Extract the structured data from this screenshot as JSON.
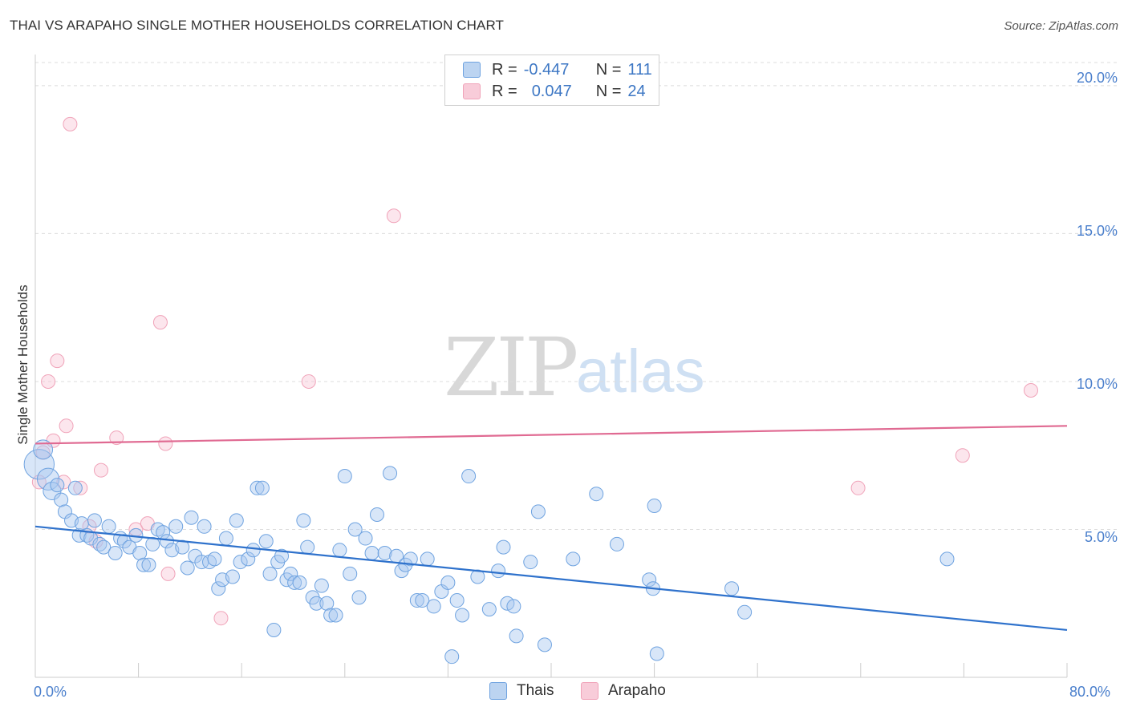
{
  "header": {
    "title": "THAI VS ARAPAHO SINGLE MOTHER HOUSEHOLDS CORRELATION CHART",
    "source": "Source: ZipAtlas.com"
  },
  "watermark": {
    "zip": "ZIP",
    "atlas": "atlas"
  },
  "legend_top": {
    "rows": [
      {
        "r_label": "R =",
        "r_value": "-0.447",
        "n_label": "N =",
        "n_value": "111"
      },
      {
        "r_label": "R =",
        "r_value": "0.047",
        "n_label": "N =",
        "n_value": "24"
      }
    ]
  },
  "chart_data": {
    "type": "scatter",
    "title": "THAI VS ARAPAHO SINGLE MOTHER HOUSEHOLDS CORRELATION CHART",
    "xlabel": "",
    "ylabel": "Single Mother Households",
    "xlim": [
      0,
      80
    ],
    "ylim": [
      0,
      21
    ],
    "x_tick_labels": [
      "0.0%",
      "80.0%"
    ],
    "y_ticks": [
      5,
      10,
      15,
      20
    ],
    "y_tick_labels": [
      "5.0%",
      "10.0%",
      "15.0%",
      "20.0%"
    ],
    "grid": "horizontal dashed",
    "legend_position": "top-center",
    "colors": {
      "thais": "#6fa3e0",
      "arapaho": "#f0a3b9",
      "thais_line": "#2f72cc",
      "arapaho_line": "#e06a92"
    },
    "series": [
      {
        "name": "Thais",
        "r": -0.447,
        "n": 111,
        "trend": {
          "x": [
            0,
            80
          ],
          "y": [
            5.1,
            1.6
          ]
        },
        "points": [
          [
            0.3,
            7.2,
            2.2
          ],
          [
            0.6,
            7.7,
            1.4
          ],
          [
            1.0,
            6.7,
            1.6
          ],
          [
            1.3,
            6.3,
            1.3
          ],
          [
            1.7,
            6.5,
            1.0
          ],
          [
            2.0,
            6.0,
            1.0
          ],
          [
            2.3,
            5.6,
            1.0
          ],
          [
            2.8,
            5.3,
            1.0
          ],
          [
            3.1,
            6.4,
            1.0
          ],
          [
            3.4,
            4.8,
            1.0
          ],
          [
            3.6,
            5.2,
            1.0
          ],
          [
            4.0,
            4.8,
            1.0
          ],
          [
            4.3,
            4.7,
            1.0
          ],
          [
            4.6,
            5.3,
            1.0
          ],
          [
            5.0,
            4.5,
            1.0
          ],
          [
            5.3,
            4.4,
            1.0
          ],
          [
            5.7,
            5.1,
            1.0
          ],
          [
            6.2,
            4.2,
            1.0
          ],
          [
            6.6,
            4.7,
            1.0
          ],
          [
            6.9,
            4.6,
            1.0
          ],
          [
            7.3,
            4.4,
            1.0
          ],
          [
            7.8,
            4.8,
            1.0
          ],
          [
            8.1,
            4.2,
            1.0
          ],
          [
            8.4,
            3.8,
            1.0
          ],
          [
            8.8,
            3.8,
            1.0
          ],
          [
            9.1,
            4.5,
            1.0
          ],
          [
            9.5,
            5.0,
            1.0
          ],
          [
            9.9,
            4.9,
            1.0
          ],
          [
            10.2,
            4.6,
            1.0
          ],
          [
            10.6,
            4.3,
            1.0
          ],
          [
            10.9,
            5.1,
            1.0
          ],
          [
            11.4,
            4.4,
            1.0
          ],
          [
            11.8,
            3.7,
            1.0
          ],
          [
            12.1,
            5.4,
            1.0
          ],
          [
            12.4,
            4.1,
            1.0
          ],
          [
            12.9,
            3.9,
            1.0
          ],
          [
            13.1,
            5.1,
            1.0
          ],
          [
            13.5,
            3.9,
            1.0
          ],
          [
            13.9,
            4.0,
            1.0
          ],
          [
            14.2,
            3.0,
            1.0
          ],
          [
            14.5,
            3.3,
            1.0
          ],
          [
            14.8,
            4.7,
            1.0
          ],
          [
            15.3,
            3.4,
            1.0
          ],
          [
            15.6,
            5.3,
            1.0
          ],
          [
            15.9,
            3.9,
            1.0
          ],
          [
            16.5,
            4.0,
            1.0
          ],
          [
            16.9,
            4.3,
            1.0
          ],
          [
            17.2,
            6.4,
            1.0
          ],
          [
            17.6,
            6.4,
            1.0
          ],
          [
            17.9,
            4.6,
            1.0
          ],
          [
            18.2,
            3.5,
            1.0
          ],
          [
            18.5,
            1.6,
            1.0
          ],
          [
            18.8,
            3.9,
            1.0
          ],
          [
            19.1,
            4.1,
            1.0
          ],
          [
            19.5,
            3.3,
            1.0
          ],
          [
            19.8,
            3.5,
            1.0
          ],
          [
            20.1,
            3.2,
            1.0
          ],
          [
            20.5,
            3.2,
            1.0
          ],
          [
            20.8,
            5.3,
            1.0
          ],
          [
            21.1,
            4.4,
            1.0
          ],
          [
            21.5,
            2.7,
            1.0
          ],
          [
            21.8,
            2.5,
            1.0
          ],
          [
            22.2,
            3.1,
            1.0
          ],
          [
            22.6,
            2.5,
            1.0
          ],
          [
            22.9,
            2.1,
            1.0
          ],
          [
            23.3,
            2.1,
            1.0
          ],
          [
            23.6,
            4.3,
            1.0
          ],
          [
            24.0,
            6.8,
            1.0
          ],
          [
            24.4,
            3.5,
            1.0
          ],
          [
            24.8,
            5.0,
            1.0
          ],
          [
            25.1,
            2.7,
            1.0
          ],
          [
            25.6,
            4.7,
            1.0
          ],
          [
            26.1,
            4.2,
            1.0
          ],
          [
            26.5,
            5.5,
            1.0
          ],
          [
            27.1,
            4.2,
            1.0
          ],
          [
            27.5,
            6.9,
            1.0
          ],
          [
            28.0,
            4.1,
            1.0
          ],
          [
            28.4,
            3.6,
            1.0
          ],
          [
            28.7,
            3.8,
            1.0
          ],
          [
            29.1,
            4.0,
            1.0
          ],
          [
            29.6,
            2.6,
            1.0
          ],
          [
            30.0,
            2.6,
            1.0
          ],
          [
            30.4,
            4.0,
            1.0
          ],
          [
            30.9,
            2.4,
            1.0
          ],
          [
            31.5,
            2.9,
            1.0
          ],
          [
            32.0,
            3.2,
            1.0
          ],
          [
            32.3,
            0.7,
            1.0
          ],
          [
            32.7,
            2.6,
            1.0
          ],
          [
            33.1,
            2.1,
            1.0
          ],
          [
            33.6,
            6.8,
            1.0
          ],
          [
            34.3,
            3.4,
            1.0
          ],
          [
            35.2,
            2.3,
            1.0
          ],
          [
            35.9,
            3.6,
            1.0
          ],
          [
            36.3,
            4.4,
            1.0
          ],
          [
            36.6,
            2.5,
            1.0
          ],
          [
            37.1,
            2.4,
            1.0
          ],
          [
            37.3,
            1.4,
            1.0
          ],
          [
            38.4,
            3.9,
            1.0
          ],
          [
            39.0,
            5.6,
            1.0
          ],
          [
            39.5,
            1.1,
            1.0
          ],
          [
            41.7,
            4.0,
            1.0
          ],
          [
            43.5,
            6.2,
            1.0
          ],
          [
            45.1,
            4.5,
            1.0
          ],
          [
            47.6,
            3.3,
            1.0
          ],
          [
            47.9,
            3.0,
            1.0
          ],
          [
            48.0,
            5.8,
            1.0
          ],
          [
            48.2,
            0.8,
            1.0
          ],
          [
            54.0,
            3.0,
            1.0
          ],
          [
            55.0,
            2.2,
            1.0
          ],
          [
            70.7,
            4.0,
            1.0
          ]
        ]
      },
      {
        "name": "Arapaho",
        "r": 0.047,
        "n": 24,
        "trend": {
          "x": [
            0,
            80
          ],
          "y": [
            7.9,
            8.5
          ]
        },
        "points": [
          [
            0.3,
            6.6,
            1.0
          ],
          [
            0.6,
            7.6,
            1.0
          ],
          [
            1.0,
            10.0,
            1.0
          ],
          [
            1.4,
            8.0,
            1.0
          ],
          [
            1.7,
            10.7,
            1.0
          ],
          [
            2.2,
            6.6,
            1.0
          ],
          [
            2.4,
            8.5,
            1.0
          ],
          [
            2.7,
            18.7,
            1.0
          ],
          [
            3.5,
            6.4,
            1.0
          ],
          [
            4.2,
            5.1,
            1.0
          ],
          [
            4.7,
            4.6,
            1.0
          ],
          [
            5.1,
            7.0,
            1.0
          ],
          [
            6.3,
            8.1,
            1.0
          ],
          [
            7.8,
            5.0,
            1.0
          ],
          [
            8.7,
            5.2,
            1.0
          ],
          [
            9.7,
            12.0,
            1.0
          ],
          [
            10.1,
            7.9,
            1.0
          ],
          [
            10.3,
            3.5,
            1.0
          ],
          [
            14.4,
            2.0,
            1.0
          ],
          [
            21.2,
            10.0,
            1.0
          ],
          [
            27.8,
            15.6,
            1.0
          ],
          [
            63.8,
            6.4,
            1.0
          ],
          [
            71.9,
            7.5,
            1.0
          ],
          [
            77.2,
            9.7,
            1.0
          ]
        ]
      }
    ]
  },
  "legend_bottom": {
    "items": [
      "Thais",
      "Arapaho"
    ]
  }
}
